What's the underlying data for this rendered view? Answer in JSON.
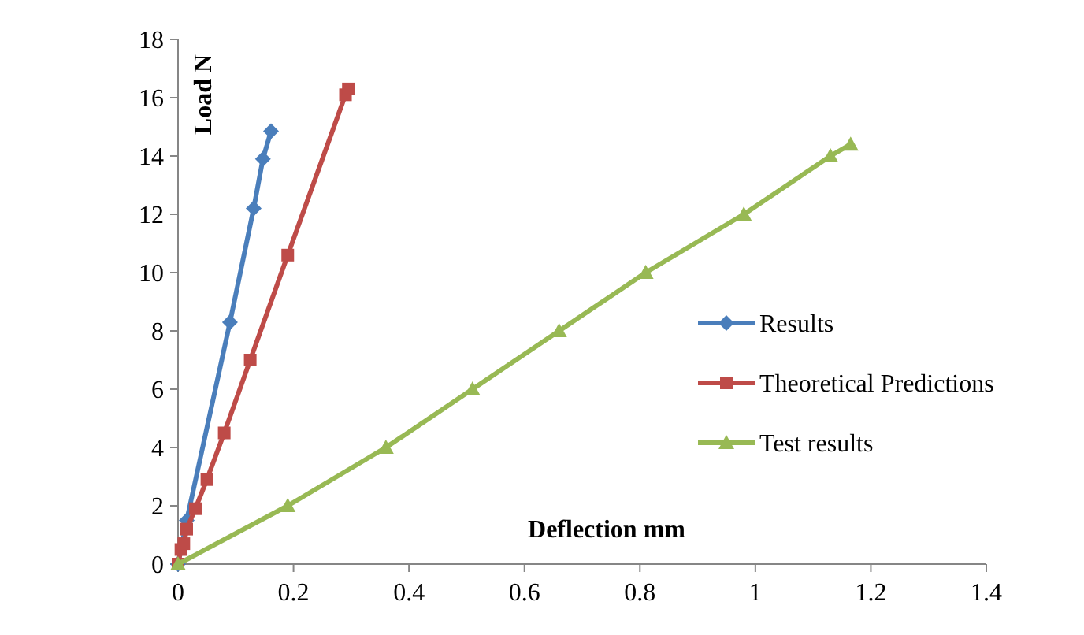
{
  "chart_data": {
    "type": "line",
    "xlabel": "Deflection mm",
    "ylabel": "Load N",
    "xlim": [
      0,
      1.4
    ],
    "xticks": [
      0,
      0.2,
      0.4,
      0.6,
      0.8,
      1,
      1.2,
      1.4
    ],
    "ylim": [
      0,
      18
    ],
    "yticks": [
      0,
      2,
      4,
      6,
      8,
      10,
      12,
      14,
      16,
      18
    ],
    "grid": false,
    "legend": "right",
    "series": [
      {
        "name": "Results",
        "color": "#4a7ebb",
        "marker": "diamond",
        "x": [
          0,
          0.015,
          0.09,
          0.131,
          0.147,
          0.161
        ],
        "values": [
          0,
          1.5,
          8.3,
          12.2,
          13.9,
          14.85
        ]
      },
      {
        "name": "Theoretical Predictions",
        "color": "#be4b48",
        "marker": "square",
        "x": [
          0,
          0.005,
          0.01,
          0.015,
          0.03,
          0.05,
          0.08,
          0.125,
          0.19,
          0.29,
          0.295
        ],
        "values": [
          0,
          0.5,
          0.7,
          1.2,
          1.9,
          2.9,
          4.5,
          7.0,
          10.6,
          16.1,
          16.3
        ]
      },
      {
        "name": "Test results",
        "color": "#98b954",
        "marker": "triangle",
        "x": [
          0,
          0.19,
          0.36,
          0.51,
          0.66,
          0.81,
          0.98,
          1.13,
          1.165
        ],
        "values": [
          0,
          2,
          4,
          6,
          8,
          10,
          12,
          14,
          14.4
        ]
      }
    ]
  }
}
